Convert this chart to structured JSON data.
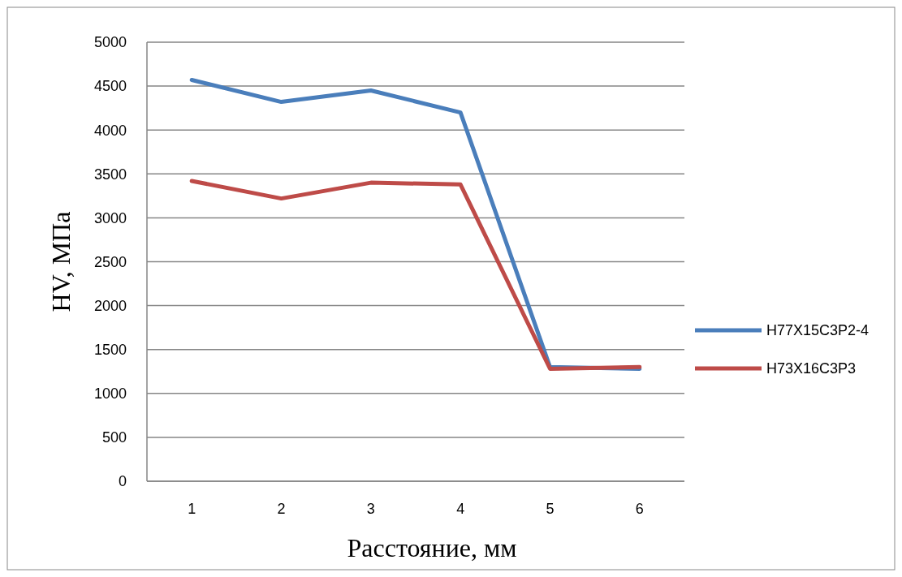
{
  "chart_data": {
    "type": "line",
    "xlabel": "Расстояние, мм",
    "ylabel": "HV, МПа",
    "categories": [
      "1",
      "2",
      "3",
      "4",
      "5",
      "6"
    ],
    "series": [
      {
        "name": "Н77Х15С3Р2-4",
        "color": "#4a7ebb",
        "values": [
          4570,
          4320,
          4450,
          4200,
          1300,
          1280
        ]
      },
      {
        "name": "Н73Х16С3Р3",
        "color": "#be4b48",
        "values": [
          3420,
          3220,
          3400,
          3380,
          1280,
          1300
        ]
      }
    ],
    "ylim": [
      0,
      5000
    ],
    "yticks": [
      0,
      500,
      1000,
      1500,
      2000,
      2500,
      3000,
      3500,
      4000,
      4500,
      5000
    ],
    "grid": "y",
    "legend": "right",
    "marker": "none",
    "line_style": "solid"
  }
}
